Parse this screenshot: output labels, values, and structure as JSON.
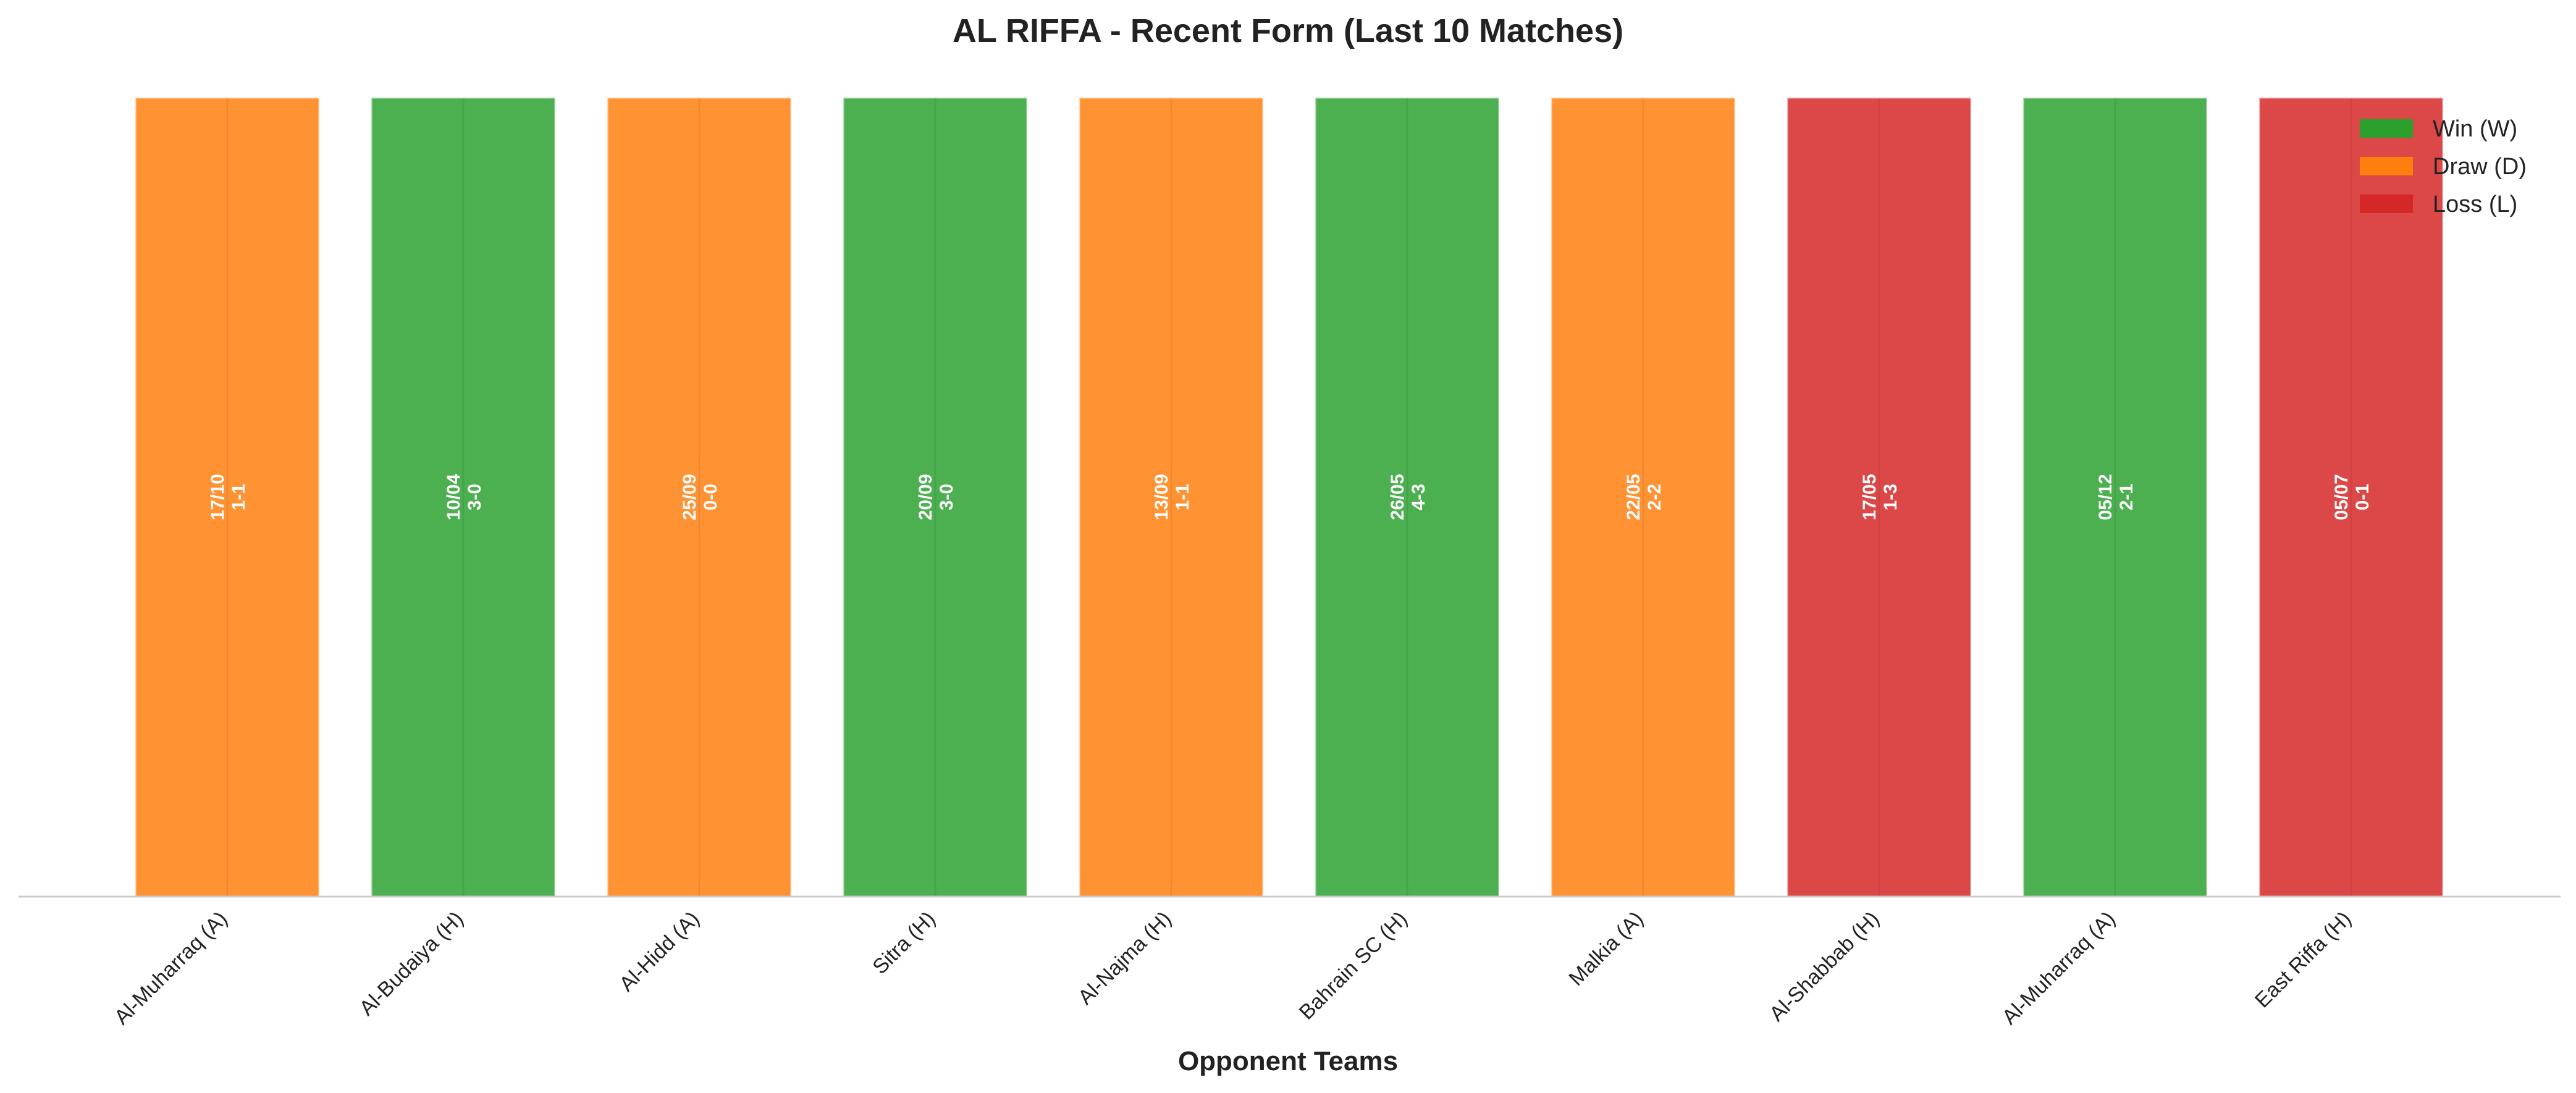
{
  "chart_data": {
    "type": "bar",
    "title": "AL RIFFA - Recent Form (Last 10 Matches)",
    "xlabel": "Opponent Teams",
    "ylabel": "",
    "grid": false,
    "legend_position": "top-right",
    "legend": [
      {
        "key": "W",
        "label": "Win (W)",
        "color": "#2ca02c"
      },
      {
        "key": "D",
        "label": "Draw (D)",
        "color": "#ff7f0e"
      },
      {
        "key": "L",
        "label": "Loss (L)",
        "color": "#d62728"
      }
    ],
    "bar_colors": {
      "W": "#4caf50",
      "D": "#ff9233",
      "L": "#dc4848"
    },
    "categories": [
      "Al-Muharraq (A)",
      "Al-Budaiya (H)",
      "Al-Hidd (A)",
      "Sitra (H)",
      "Al-Najma (H)",
      "Bahrain SC (H)",
      "Malkia (A)",
      "Al-Shabbab (H)",
      "Al-Muharraq (A)",
      "East Riffa (H)"
    ],
    "results": [
      "D",
      "W",
      "D",
      "W",
      "D",
      "W",
      "D",
      "L",
      "W",
      "L"
    ],
    "dates": [
      "17/10",
      "10/04",
      "25/09",
      "20/09",
      "13/09",
      "26/05",
      "22/05",
      "17/05",
      "05/12",
      "05/07"
    ],
    "scores": [
      "1-1",
      "3-0",
      "0-0",
      "3-0",
      "1-1",
      "4-3",
      "2-2",
      "1-3",
      "2-1",
      "0-1"
    ],
    "values": [
      1,
      1,
      1,
      1,
      1,
      1,
      1,
      1,
      1,
      1
    ],
    "ylim": [
      0,
      1
    ]
  }
}
